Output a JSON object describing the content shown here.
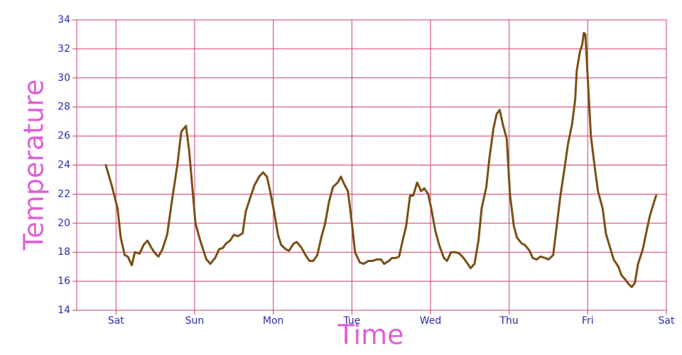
{
  "chart_data": {
    "type": "line",
    "x_label": "Time",
    "y_label": "Temperature",
    "xlim": [
      -0.5,
      7
    ],
    "ylim": [
      14,
      34
    ],
    "xticks": [
      {
        "value": 0,
        "label": "Sat"
      },
      {
        "value": 1,
        "label": "Sun"
      },
      {
        "value": 2,
        "label": "Mon"
      },
      {
        "value": 3,
        "label": "Tue"
      },
      {
        "value": 4,
        "label": "Wed"
      },
      {
        "value": 5,
        "label": "Thu"
      },
      {
        "value": 6,
        "label": "Fri"
      },
      {
        "value": 7,
        "label": "Sat"
      }
    ],
    "yticks": [
      14,
      16,
      18,
      20,
      22,
      24,
      26,
      28,
      30,
      32,
      34
    ],
    "grid": true,
    "grid_color": "#cf3d6e",
    "x": [
      -0.13,
      -0.05,
      0.02,
      0.06,
      0.11,
      0.15,
      0.2,
      0.24,
      0.3,
      0.35,
      0.4,
      0.45,
      0.5,
      0.54,
      0.59,
      0.65,
      0.71,
      0.78,
      0.83,
      0.89,
      0.93,
      0.97,
      1.01,
      1.06,
      1.1,
      1.15,
      1.2,
      1.26,
      1.31,
      1.36,
      1.4,
      1.45,
      1.5,
      1.55,
      1.61,
      1.65,
      1.71,
      1.76,
      1.82,
      1.87,
      1.92,
      1.96,
      2.01,
      2.06,
      2.1,
      2.16,
      2.2,
      2.26,
      2.3,
      2.36,
      2.41,
      2.46,
      2.51,
      2.56,
      2.61,
      2.66,
      2.71,
      2.76,
      2.82,
      2.86,
      2.91,
      2.95,
      3.0,
      3.04,
      3.1,
      3.15,
      3.21,
      3.26,
      3.32,
      3.37,
      3.41,
      3.47,
      3.51,
      3.56,
      3.6,
      3.65,
      3.69,
      3.74,
      3.78,
      3.83,
      3.88,
      3.92,
      3.97,
      4.01,
      4.06,
      4.11,
      4.17,
      4.21,
      4.26,
      4.32,
      4.37,
      4.42,
      4.46,
      4.51,
      4.56,
      4.61,
      4.65,
      4.71,
      4.75,
      4.8,
      4.84,
      4.88,
      4.92,
      4.97,
      5.01,
      5.06,
      5.1,
      5.16,
      5.2,
      5.26,
      5.3,
      5.35,
      5.4,
      5.46,
      5.5,
      5.56,
      5.61,
      5.65,
      5.71,
      5.75,
      5.8,
      5.84,
      5.86,
      5.9,
      5.93,
      5.95,
      5.97,
      6.01,
      6.04,
      6.09,
      6.13,
      6.19,
      6.23,
      6.29,
      6.33,
      6.39,
      6.43,
      6.48,
      6.52,
      6.56,
      6.6,
      6.64,
      6.7,
      6.75,
      6.79,
      6.84,
      6.87
    ],
    "series": [
      {
        "color": "#7a4f14",
        "values": [
          24,
          22.5,
          21,
          19,
          17.8,
          17.7,
          17.1,
          18,
          17.9,
          18.5,
          18.8,
          18.3,
          17.9,
          17.7,
          18.2,
          19.2,
          21.5,
          24,
          26.3,
          26.7,
          25,
          22.5,
          20,
          19,
          18.3,
          17.5,
          17.2,
          17.6,
          18.2,
          18.3,
          18.6,
          18.8,
          19.2,
          19.1,
          19.3,
          20.8,
          21.8,
          22.6,
          23.2,
          23.5,
          23.2,
          22.2,
          20.8,
          19.2,
          18.5,
          18.2,
          18.1,
          18.6,
          18.7,
          18.3,
          17.8,
          17.4,
          17.4,
          17.8,
          19,
          20,
          21.5,
          22.5,
          22.8,
          23.2,
          22.6,
          22.2,
          20,
          18,
          17.3,
          17.2,
          17.4,
          17.4,
          17.5,
          17.5,
          17.2,
          17.4,
          17.6,
          17.6,
          17.7,
          18.9,
          19.8,
          21.9,
          21.9,
          22.8,
          22.2,
          22.4,
          22,
          21,
          19.5,
          18.5,
          17.6,
          17.4,
          18,
          18,
          17.9,
          17.6,
          17.3,
          16.9,
          17.2,
          18.8,
          21,
          22.5,
          24.5,
          26.5,
          27.5,
          27.8,
          26.8,
          25.8,
          22,
          19.8,
          19,
          18.6,
          18.5,
          18.1,
          17.6,
          17.5,
          17.7,
          17.6,
          17.5,
          17.8,
          20,
          21.8,
          24,
          25.5,
          26.8,
          28.5,
          30.5,
          31.8,
          32.3,
          33.1,
          33,
          29,
          26,
          23.8,
          22.2,
          21,
          19.3,
          18.2,
          17.5,
          17,
          16.4,
          16.1,
          15.8,
          15.6,
          15.9,
          17.2,
          18.2,
          19.5,
          20.5,
          21.4,
          21.9
        ]
      }
    ]
  }
}
